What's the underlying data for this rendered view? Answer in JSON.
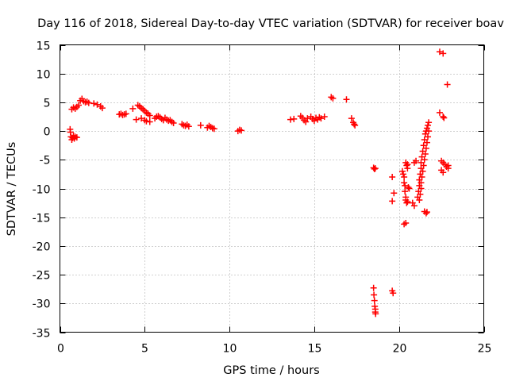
{
  "chart_data": {
    "type": "scatter",
    "title": "Day 116 of 2018, Sidereal Day-to-day VTEC variation (SDTVAR) for receiver boav",
    "xlabel": "GPS time / hours",
    "ylabel": "SDTVAR / TECUs",
    "xlim": [
      0,
      25
    ],
    "ylim": [
      -35,
      15
    ],
    "xticks": [
      0,
      5,
      10,
      15,
      20,
      25
    ],
    "yticks": [
      15,
      10,
      5,
      0,
      -5,
      -10,
      -15,
      -20,
      -25,
      -30,
      -35
    ],
    "grid": true,
    "marker": "+",
    "color": "#ff0000",
    "points": [
      [
        0.6,
        0.3
      ],
      [
        0.62,
        -0.2
      ],
      [
        0.65,
        -1.0
      ],
      [
        0.7,
        -1.5
      ],
      [
        0.75,
        -1.2
      ],
      [
        0.8,
        -0.8
      ],
      [
        0.85,
        -1.3
      ],
      [
        0.9,
        -1.0
      ],
      [
        1.0,
        -1.1
      ],
      [
        0.7,
        3.8
      ],
      [
        0.8,
        4.1
      ],
      [
        0.9,
        3.9
      ],
      [
        1.0,
        4.2
      ],
      [
        1.1,
        4.5
      ],
      [
        1.2,
        5.3
      ],
      [
        1.3,
        5.6
      ],
      [
        1.4,
        5.2
      ],
      [
        1.5,
        5.0
      ],
      [
        1.6,
        5.1
      ],
      [
        1.7,
        4.9
      ],
      [
        2.0,
        4.8
      ],
      [
        2.2,
        4.6
      ],
      [
        2.4,
        4.3
      ],
      [
        2.5,
        4.0
      ],
      [
        3.5,
        2.9
      ],
      [
        3.6,
        3.0
      ],
      [
        3.7,
        2.8
      ],
      [
        3.8,
        2.9
      ],
      [
        3.9,
        3.0
      ],
      [
        4.3,
        3.9
      ],
      [
        4.6,
        4.5
      ],
      [
        4.7,
        4.3
      ],
      [
        4.8,
        4.0
      ],
      [
        4.9,
        3.8
      ],
      [
        5.0,
        3.5
      ],
      [
        5.1,
        3.2
      ],
      [
        5.2,
        3.0
      ],
      [
        5.3,
        2.7
      ],
      [
        4.5,
        2.0
      ],
      [
        4.8,
        2.2
      ],
      [
        5.0,
        1.9
      ],
      [
        5.1,
        1.7
      ],
      [
        5.3,
        1.6
      ],
      [
        5.6,
        2.2
      ],
      [
        5.7,
        2.5
      ],
      [
        5.8,
        2.6
      ],
      [
        5.9,
        2.4
      ],
      [
        6.0,
        2.1
      ],
      [
        6.1,
        1.9
      ],
      [
        6.2,
        2.3
      ],
      [
        6.3,
        2.0
      ],
      [
        6.4,
        1.8
      ],
      [
        6.5,
        1.9
      ],
      [
        6.6,
        1.6
      ],
      [
        6.7,
        1.4
      ],
      [
        7.2,
        1.2
      ],
      [
        7.3,
        1.0
      ],
      [
        7.4,
        0.9
      ],
      [
        7.5,
        1.1
      ],
      [
        7.6,
        0.8
      ],
      [
        8.3,
        1.0
      ],
      [
        8.7,
        0.6
      ],
      [
        8.8,
        0.9
      ],
      [
        8.9,
        0.7
      ],
      [
        9.0,
        0.5
      ],
      [
        9.1,
        0.4
      ],
      [
        10.5,
        0.0
      ],
      [
        10.6,
        0.2
      ],
      [
        10.7,
        0.1
      ],
      [
        13.6,
        2.0
      ],
      [
        13.8,
        2.1
      ],
      [
        14.2,
        2.6
      ],
      [
        14.3,
        2.3
      ],
      [
        14.4,
        1.9
      ],
      [
        14.5,
        1.6
      ],
      [
        14.6,
        2.2
      ],
      [
        14.8,
        2.5
      ],
      [
        14.9,
        2.1
      ],
      [
        15.0,
        1.8
      ],
      [
        15.1,
        2.3
      ],
      [
        15.2,
        2.0
      ],
      [
        15.3,
        2.4
      ],
      [
        15.4,
        2.2
      ],
      [
        15.6,
        2.5
      ],
      [
        16.0,
        5.9
      ],
      [
        16.1,
        5.7
      ],
      [
        16.9,
        5.5
      ],
      [
        17.2,
        2.2
      ],
      [
        17.3,
        1.5
      ],
      [
        17.35,
        1.2
      ],
      [
        17.4,
        1.0
      ],
      [
        18.5,
        -6.4
      ],
      [
        18.55,
        -6.6
      ],
      [
        18.6,
        -6.5
      ],
      [
        18.5,
        -27.3
      ],
      [
        18.52,
        -28.5
      ],
      [
        18.55,
        -29.5
      ],
      [
        18.57,
        -30.5
      ],
      [
        18.6,
        -31.0
      ],
      [
        18.6,
        -31.5
      ],
      [
        18.62,
        -31.8
      ],
      [
        19.6,
        -8.0
      ],
      [
        19.7,
        -10.8
      ],
      [
        19.6,
        -12.2
      ],
      [
        19.6,
        -27.8
      ],
      [
        19.65,
        -28.2
      ],
      [
        20.2,
        -7.0
      ],
      [
        20.25,
        -7.5
      ],
      [
        20.3,
        -8.0
      ],
      [
        20.3,
        -9.0
      ],
      [
        20.35,
        -9.5
      ],
      [
        20.35,
        -10.5
      ],
      [
        20.4,
        -11.5
      ],
      [
        20.4,
        -12.0
      ],
      [
        20.45,
        -12.5
      ],
      [
        20.4,
        -5.5
      ],
      [
        20.45,
        -6.0
      ],
      [
        20.5,
        -5.8
      ],
      [
        20.5,
        -6.5
      ],
      [
        20.55,
        -9.8
      ],
      [
        20.6,
        -10.0
      ],
      [
        20.5,
        -12.3
      ],
      [
        20.3,
        -16.2
      ],
      [
        20.4,
        -16.0
      ],
      [
        20.8,
        -12.5
      ],
      [
        20.9,
        -13.0
      ],
      [
        20.9,
        -5.5
      ],
      [
        21.0,
        -5.2
      ],
      [
        21.1,
        -11.5
      ],
      [
        21.15,
        -10.5
      ],
      [
        21.2,
        -9.5
      ],
      [
        21.2,
        -8.5
      ],
      [
        21.25,
        -7.5
      ],
      [
        21.3,
        -6.5
      ],
      [
        21.3,
        -5.5
      ],
      [
        21.35,
        -4.5
      ],
      [
        21.4,
        -3.5
      ],
      [
        21.45,
        -2.5
      ],
      [
        21.5,
        -1.5
      ],
      [
        21.55,
        -0.5
      ],
      [
        21.6,
        0.0
      ],
      [
        21.65,
        0.5
      ],
      [
        21.7,
        1.0
      ],
      [
        21.75,
        1.5
      ],
      [
        21.2,
        -12.0
      ],
      [
        21.25,
        -11.0
      ],
      [
        21.3,
        -10.0
      ],
      [
        21.3,
        -9.0
      ],
      [
        21.35,
        -8.0
      ],
      [
        21.4,
        -7.0
      ],
      [
        21.45,
        -6.0
      ],
      [
        21.5,
        -5.0
      ],
      [
        21.55,
        -4.0
      ],
      [
        21.6,
        -3.0
      ],
      [
        21.65,
        -2.0
      ],
      [
        21.7,
        -1.0
      ],
      [
        21.75,
        0.0
      ],
      [
        21.5,
        -14.0
      ],
      [
        21.6,
        -14.3
      ],
      [
        21.65,
        -14.1
      ],
      [
        22.4,
        13.8
      ],
      [
        22.6,
        13.5
      ],
      [
        22.4,
        3.2
      ],
      [
        22.6,
        2.5
      ],
      [
        22.65,
        2.3
      ],
      [
        22.85,
        8.1
      ],
      [
        22.5,
        -5.2
      ],
      [
        22.6,
        -5.5
      ],
      [
        22.7,
        -5.8
      ],
      [
        22.8,
        -6.2
      ],
      [
        22.9,
        -6.5
      ],
      [
        22.9,
        -6.0
      ],
      [
        22.6,
        -7.2
      ],
      [
        22.5,
        -6.8
      ]
    ]
  }
}
